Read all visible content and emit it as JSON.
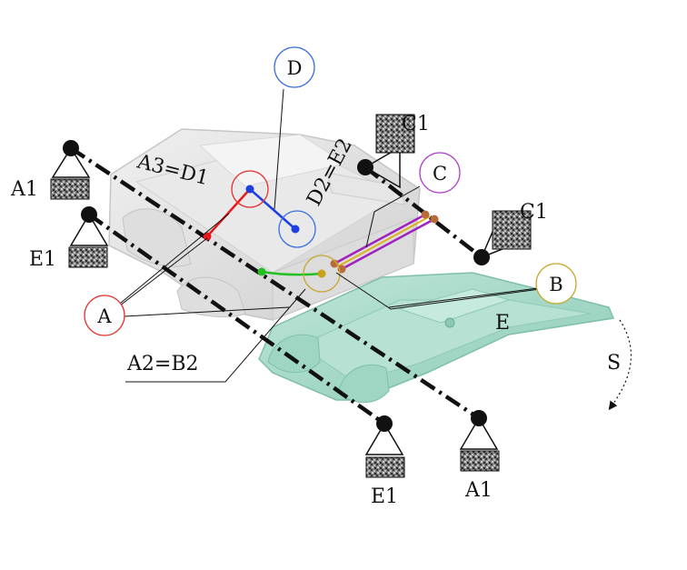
{
  "labels": {
    "d": "D",
    "c1_top": "C1",
    "a3_d1": "A3=D1",
    "d2_e2": "D2=E2",
    "c": "C",
    "a1_left": "A1",
    "c1_right": "C1",
    "e1_left": "E1",
    "b": "B",
    "a": "A",
    "e": "E",
    "a2_b2": "A2=B2",
    "s": "S",
    "e1_bottom": "E1",
    "a1_bottom": "A1"
  },
  "colors": {
    "red": "#e41a1c",
    "blue": "#1f3fe0",
    "green": "#22c122",
    "yellow": "#c8a21a",
    "purple": "#a020c0",
    "circle_red": "#e83030",
    "circle_blue": "#3a6fe0",
    "circle_purple": "#b040d0",
    "circle_yellow": "#c8a830",
    "teal_part": "#a8dccb",
    "grey_part": "#d4d4d4"
  }
}
